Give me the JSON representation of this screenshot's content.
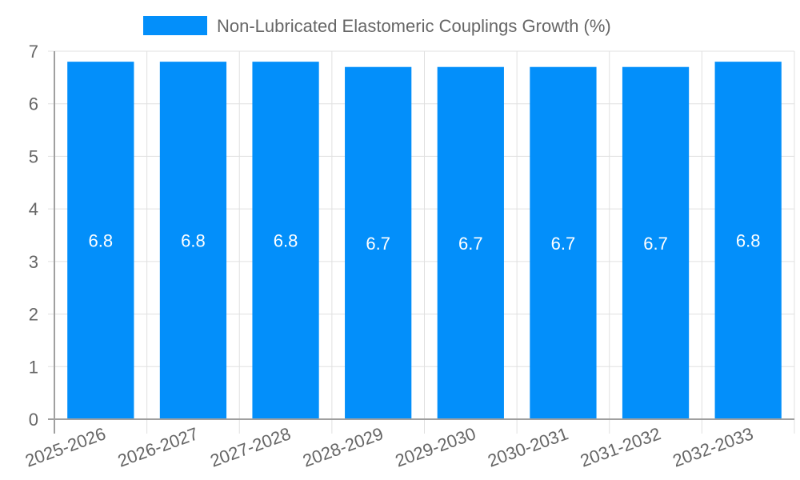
{
  "legend": {
    "label": "Non-Lubricated Elastomeric Couplings Growth (%)",
    "color": "#038ffa"
  },
  "colors": {
    "bar": "#038ffa",
    "grid": "#e0e0e0",
    "axis": "#a0a0a0",
    "tick_text": "#666666",
    "bar_label": "#ffffff"
  },
  "chart_data": {
    "type": "bar",
    "title": "",
    "xlabel": "",
    "ylabel": "",
    "categories": [
      "2025-2026",
      "2026-2027",
      "2027-2028",
      "2028-2029",
      "2029-2030",
      "2030-2031",
      "2031-2032",
      "2032-2033"
    ],
    "series": [
      {
        "name": "Non-Lubricated Elastomeric Couplings Growth (%)",
        "values": [
          6.8,
          6.8,
          6.8,
          6.7,
          6.7,
          6.7,
          6.7,
          6.8
        ]
      }
    ],
    "ylim": [
      0,
      7
    ],
    "yticks": [
      0,
      1,
      2,
      3,
      4,
      5,
      6,
      7
    ],
    "grid": true,
    "legend_position": "top",
    "data_labels": true
  }
}
